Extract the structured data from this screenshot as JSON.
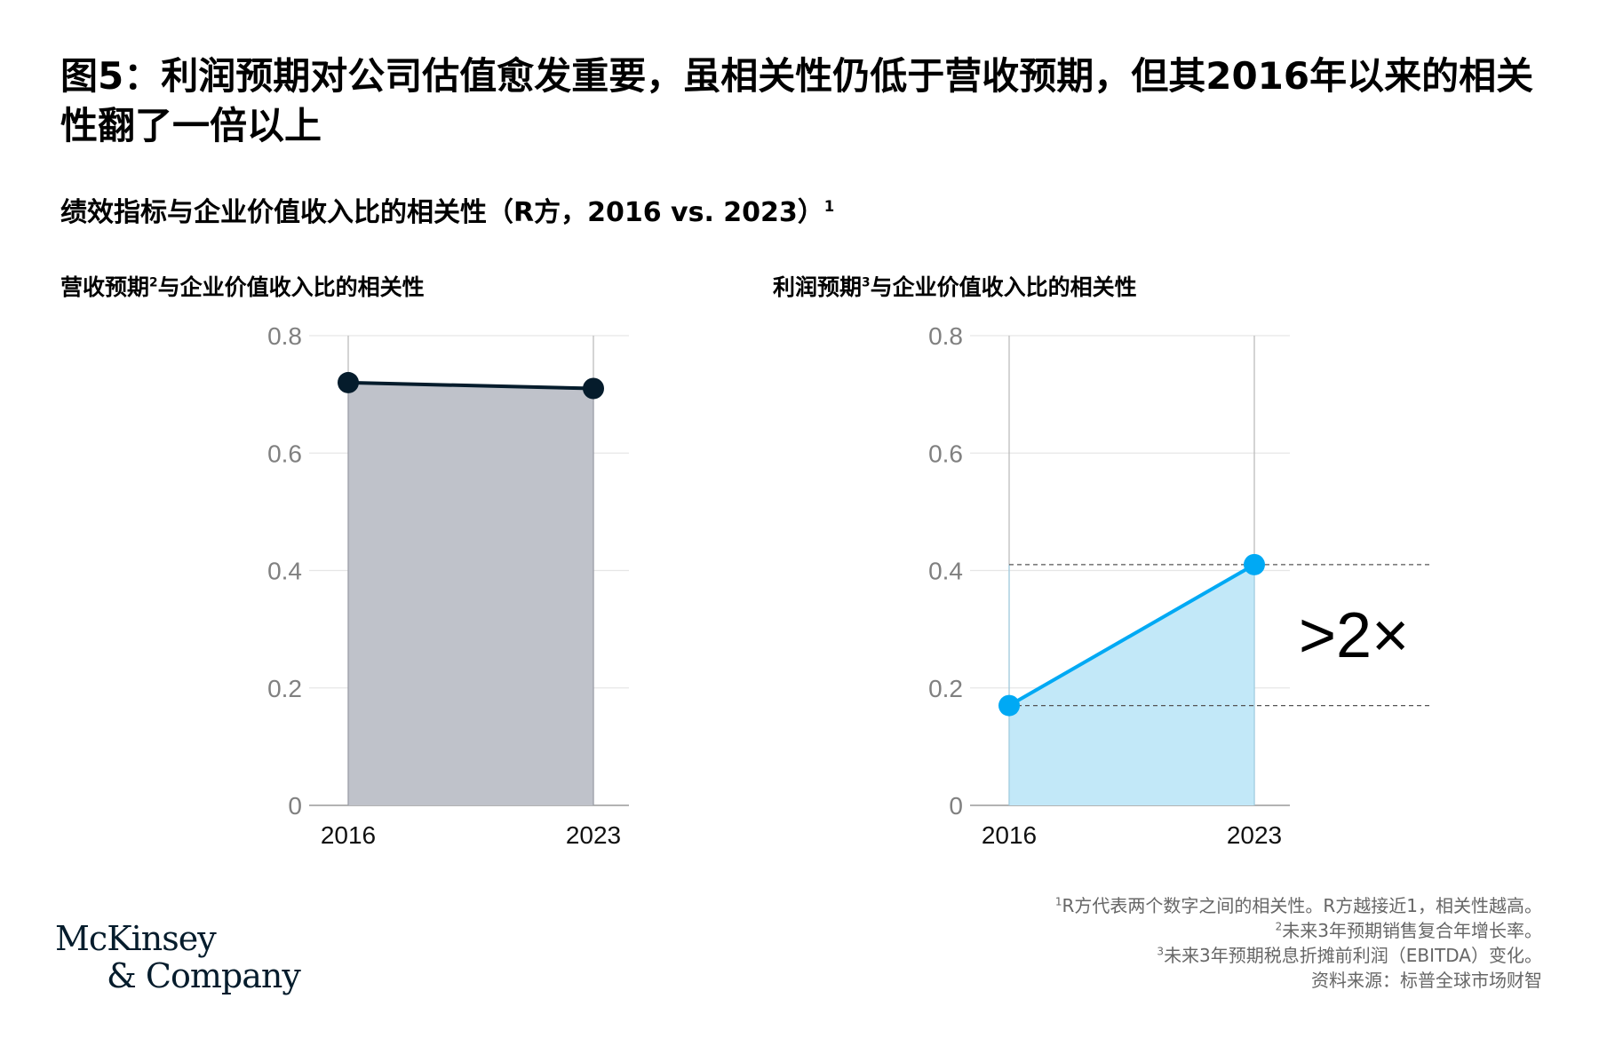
{
  "title": "图5：利润预期对公司估值愈发重要，虽相关性仍低于营收预期，但其2016年以来的相关性翻了一倍以上",
  "subtitle": {
    "text": "绩效指标与企业价值收入比的相关性（R方，2016 vs. 2023）",
    "sup": "1"
  },
  "chart_data": [
    {
      "type": "area",
      "title": "营收预期",
      "title_sup": "2",
      "title_suffix": "与企业价值收入比的相关性",
      "x": [
        "2016",
        "2023"
      ],
      "series": [
        {
          "values": [
            0.72,
            0.71
          ]
        }
      ],
      "ylim": [
        0,
        0.8
      ],
      "yticks": [
        "0",
        "0.2",
        "0.4",
        "0.6",
        "0.8"
      ],
      "grid": true,
      "colors": {
        "line": "#051c2c",
        "fill": "#bfc2ca",
        "marker": "#051c2c"
      }
    },
    {
      "type": "area",
      "title": "利润预期",
      "title_sup": "3",
      "title_suffix": "与企业价值收入比的相关性",
      "x": [
        "2016",
        "2023"
      ],
      "series": [
        {
          "values": [
            0.17,
            0.41
          ]
        }
      ],
      "ylim": [
        0,
        0.8
      ],
      "yticks": [
        "0",
        "0.2",
        "0.4",
        "0.6",
        "0.8"
      ],
      "grid": true,
      "annotation": ">2×",
      "colors": {
        "line": "#00a9f4",
        "fill": "#c2e8f8",
        "marker": "#00a9f4"
      }
    }
  ],
  "footnotes": {
    "f1_sup": "1",
    "f1": "R方代表两个数字之间的相关性。R方越接近1，相关性越高。",
    "f2_sup": "2",
    "f2": "未来3年预期销售复合年增长率。",
    "f3_sup": "3",
    "f3": "未来3年预期税息折摊前利润（EBITDA）变化。",
    "source": "资料来源：标普全球市场财智"
  },
  "logo": {
    "line1": "McKinsey",
    "line2": "& Company"
  },
  "colors": {
    "axis_text": "#808080",
    "grid": "#e6e6e6",
    "text": "#000000",
    "footnote": "#666666"
  }
}
